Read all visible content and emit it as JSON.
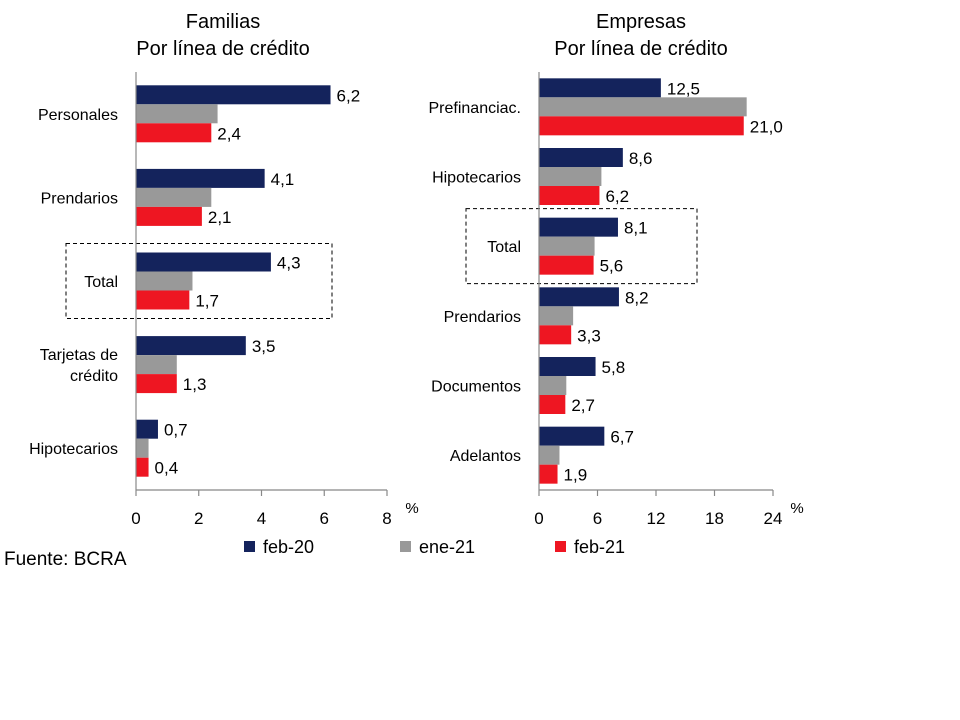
{
  "source_label": "Fuente: BCRA",
  "legend": [
    {
      "label": "feb-20",
      "color": "#14235c"
    },
    {
      "label": "ene-21",
      "color": "#999999"
    },
    {
      "label": "feb-21",
      "color": "#ee1622"
    }
  ],
  "chart_data": [
    {
      "type": "bar",
      "orientation": "horizontal",
      "title": "Familias",
      "subtitle": "Por línea de crédito",
      "unit": "%",
      "xlim": [
        0,
        8
      ],
      "xticks": [
        0,
        2,
        4,
        6,
        8
      ],
      "categories": [
        "Personales",
        "Prendarios",
        "Total",
        "Tarjetas de crédito",
        "Hipotecarios"
      ],
      "category_lines": [
        [
          "Personales"
        ],
        [
          "Prendarios"
        ],
        [
          "Total"
        ],
        [
          "Tarjetas de",
          "crédito"
        ],
        [
          "Hipotecarios"
        ]
      ],
      "highlighted_category": "Total",
      "series": [
        {
          "name": "feb-20",
          "values": [
            6.2,
            4.1,
            4.3,
            3.5,
            0.7
          ],
          "labels": [
            "6,2",
            "4,1",
            "4,3",
            "3,5",
            "0,7"
          ]
        },
        {
          "name": "ene-21",
          "values": [
            2.6,
            2.4,
            1.8,
            1.3,
            0.4
          ],
          "labels": [
            null,
            null,
            null,
            null,
            null
          ]
        },
        {
          "name": "feb-21",
          "values": [
            2.4,
            2.1,
            1.7,
            1.3,
            0.4
          ],
          "labels": [
            "2,4",
            "2,1",
            "1,7",
            "1,3",
            "0,4"
          ]
        }
      ]
    },
    {
      "type": "bar",
      "orientation": "horizontal",
      "title": "Empresas",
      "subtitle": "Por línea de crédito",
      "unit": "%",
      "xlim": [
        0,
        24
      ],
      "xticks": [
        0,
        6,
        12,
        18,
        24
      ],
      "categories": [
        "Prefinanciac.",
        "Hipotecarios",
        "Total",
        "Prendarios",
        "Documentos",
        "Adelantos"
      ],
      "category_lines": [
        [
          "Prefinanciac."
        ],
        [
          "Hipotecarios"
        ],
        [
          "Total"
        ],
        [
          "Prendarios"
        ],
        [
          "Documentos"
        ],
        [
          "Adelantos"
        ]
      ],
      "highlighted_category": "Total",
      "series": [
        {
          "name": "feb-20",
          "values": [
            12.5,
            8.6,
            8.1,
            8.2,
            5.8,
            6.7
          ],
          "labels": [
            "12,5",
            "8,6",
            "8,1",
            "8,2",
            "5,8",
            "6,7"
          ]
        },
        {
          "name": "ene-21",
          "values": [
            21.3,
            6.4,
            5.7,
            3.5,
            2.8,
            2.1
          ],
          "labels": [
            null,
            null,
            null,
            null,
            null,
            null
          ]
        },
        {
          "name": "feb-21",
          "values": [
            21.0,
            6.2,
            5.6,
            3.3,
            2.7,
            1.9
          ],
          "labels": [
            "21,0",
            "6,2",
            "5,6",
            "3,3",
            "2,7",
            "1,9"
          ]
        }
      ]
    }
  ]
}
